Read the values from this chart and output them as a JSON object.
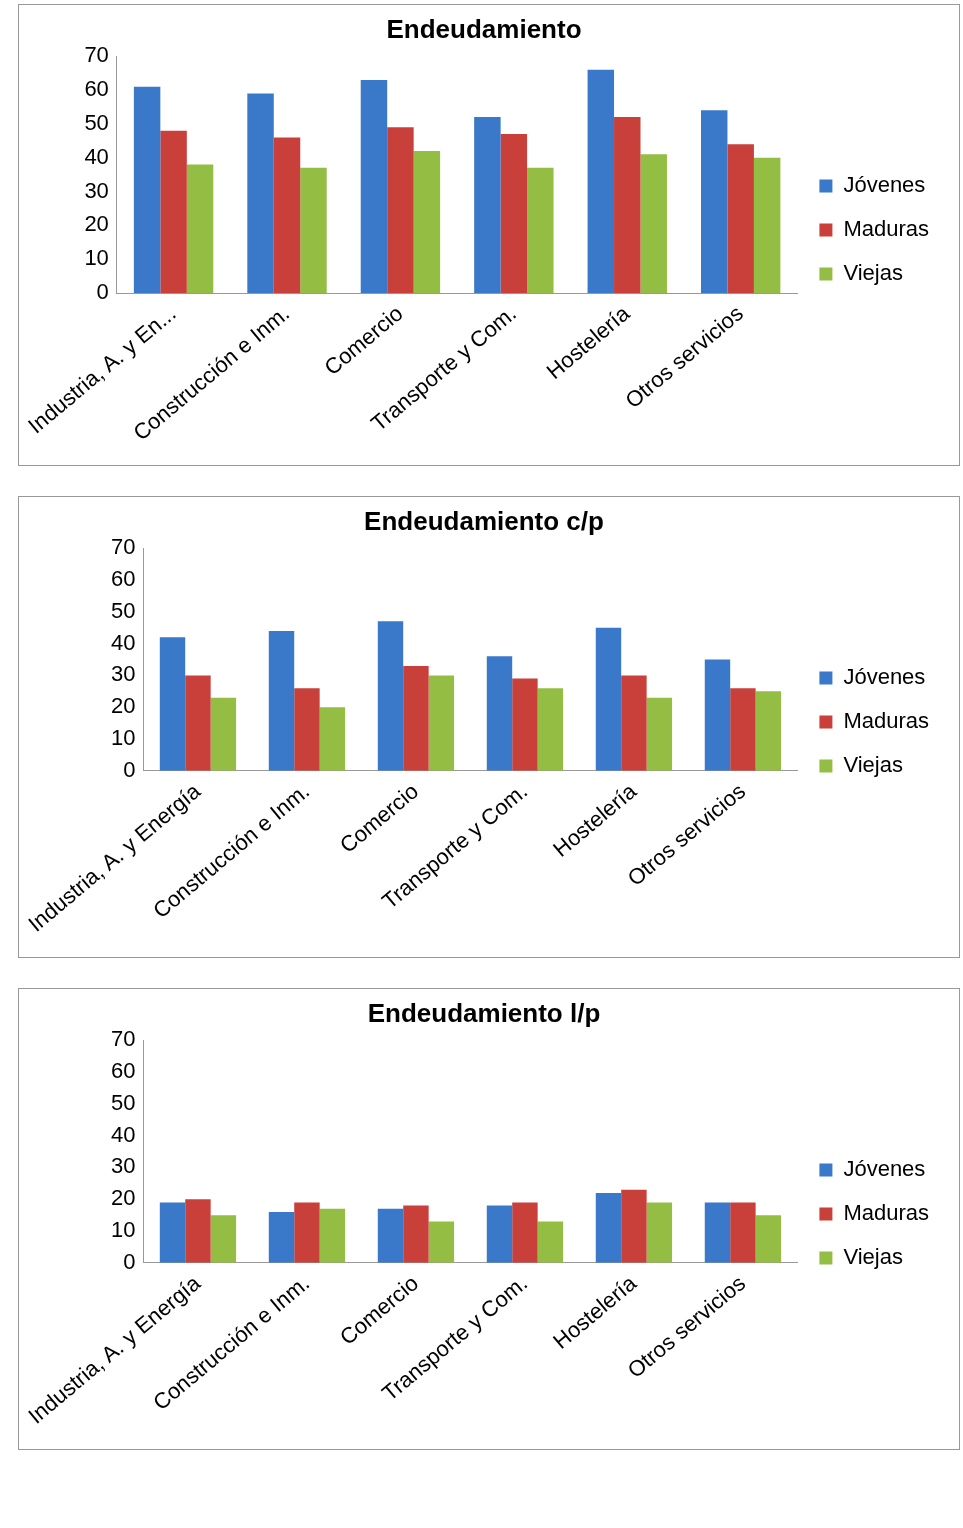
{
  "chart_data": [
    {
      "type": "bar",
      "title": "Endeudamiento",
      "categories": [
        "Industria, A. y En...",
        "Construcción e Inm.",
        "Comercio",
        "Transporte y Com.",
        "Hostelería",
        "Otros servicios"
      ],
      "series": [
        {
          "name": "Jóvenes",
          "color": "#3a78c9",
          "values": [
            61,
            59,
            63,
            52,
            66,
            54
          ]
        },
        {
          "name": "Maduras",
          "color": "#c9403a",
          "values": [
            48,
            46,
            49,
            47,
            52,
            44
          ]
        },
        {
          "name": "Viejas",
          "color": "#94bd44",
          "values": [
            38,
            37,
            42,
            37,
            41,
            40
          ]
        }
      ],
      "ylim": [
        0,
        70
      ],
      "yticks": [
        0,
        10,
        20,
        30,
        40,
        50,
        60,
        70
      ],
      "grid": false,
      "legend": "right"
    },
    {
      "type": "bar",
      "title": "Endeudamiento c/p",
      "categories": [
        "Industria, A. y Energía",
        "Construcción e Inm.",
        "Comercio",
        "Transporte y Com.",
        "Hostelería",
        "Otros servicios"
      ],
      "series": [
        {
          "name": "Jóvenes",
          "color": "#3a78c9",
          "values": [
            42,
            44,
            47,
            36,
            45,
            35
          ]
        },
        {
          "name": "Maduras",
          "color": "#c9403a",
          "values": [
            30,
            26,
            33,
            29,
            30,
            26
          ]
        },
        {
          "name": "Viejas",
          "color": "#94bd44",
          "values": [
            23,
            20,
            30,
            26,
            23,
            25
          ]
        }
      ],
      "ylim": [
        0,
        70
      ],
      "yticks": [
        0,
        10,
        20,
        30,
        40,
        50,
        60,
        70
      ],
      "grid": false,
      "legend": "right"
    },
    {
      "type": "bar",
      "title": "Endeudamiento l/p",
      "categories": [
        "Industria, A. y Energía",
        "Construcción e Inm.",
        "Comercio",
        "Transporte y Com.",
        "Hostelería",
        "Otros servicios"
      ],
      "series": [
        {
          "name": "Jóvenes",
          "color": "#3a78c9",
          "values": [
            19,
            16,
            17,
            18,
            22,
            19
          ]
        },
        {
          "name": "Maduras",
          "color": "#c9403a",
          "values": [
            20,
            19,
            18,
            19,
            23,
            19
          ]
        },
        {
          "name": "Viejas",
          "color": "#94bd44",
          "values": [
            15,
            17,
            13,
            13,
            19,
            15
          ]
        }
      ],
      "ylim": [
        0,
        70
      ],
      "yticks": [
        0,
        10,
        20,
        30,
        40,
        50,
        60,
        70
      ],
      "grid": false,
      "legend": "right"
    }
  ]
}
